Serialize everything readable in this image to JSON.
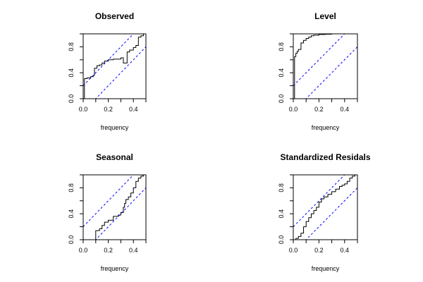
{
  "chart_data": [
    {
      "type": "line",
      "title": "Observed",
      "xlabel": "frequency",
      "ylabel": "",
      "xlim": [
        0,
        0.5
      ],
      "ylim": [
        0,
        1
      ],
      "xticks": [
        "0.0",
        "0.2",
        "0.4"
      ],
      "yticks": [
        "0.0",
        "0.4",
        "0.8"
      ],
      "grid": false,
      "series": [
        {
          "style": "step",
          "color": "#000000",
          "x": [
            0.0,
            0.01,
            0.03,
            0.06,
            0.08,
            0.09,
            0.11,
            0.13,
            0.15,
            0.17,
            0.2,
            0.24,
            0.3,
            0.32,
            0.35,
            0.37,
            0.4,
            0.42,
            0.44,
            0.46,
            0.48,
            0.5
          ],
          "y": [
            0.0,
            0.31,
            0.32,
            0.34,
            0.36,
            0.47,
            0.51,
            0.52,
            0.55,
            0.58,
            0.6,
            0.61,
            0.63,
            0.55,
            0.72,
            0.75,
            0.79,
            0.82,
            0.95,
            0.97,
            1.0,
            1.0
          ]
        },
        {
          "style": "dashed",
          "color": "#0000ff",
          "x": [
            0.0,
            0.5
          ],
          "y": [
            0.2,
            1.2
          ]
        },
        {
          "style": "dashed",
          "color": "#0000ff",
          "x": [
            0.0,
            0.5
          ],
          "y": [
            -0.2,
            0.8
          ]
        }
      ]
    },
    {
      "type": "line",
      "title": "Level",
      "xlabel": "frequency",
      "ylabel": "",
      "xlim": [
        0,
        0.5
      ],
      "ylim": [
        0,
        1
      ],
      "xticks": [
        "0.0",
        "0.2",
        "0.4"
      ],
      "yticks": [
        "0.0",
        "0.4",
        "0.8"
      ],
      "grid": false,
      "series": [
        {
          "style": "step",
          "color": "#000000",
          "x": [
            0.0,
            0.01,
            0.02,
            0.03,
            0.04,
            0.06,
            0.08,
            0.1,
            0.12,
            0.14,
            0.16,
            0.2,
            0.25,
            0.3,
            0.35,
            0.4,
            0.5
          ],
          "y": [
            0.0,
            0.65,
            0.7,
            0.73,
            0.76,
            0.86,
            0.9,
            0.93,
            0.95,
            0.97,
            0.98,
            0.99,
            0.995,
            1.0,
            1.0,
            1.0,
            1.0
          ]
        },
        {
          "style": "dashed",
          "color": "#0000ff",
          "x": [
            0.0,
            0.5
          ],
          "y": [
            0.2,
            1.2
          ]
        },
        {
          "style": "dashed",
          "color": "#0000ff",
          "x": [
            0.0,
            0.5
          ],
          "y": [
            -0.2,
            0.8
          ]
        }
      ]
    },
    {
      "type": "line",
      "title": "Seasonal",
      "xlabel": "frequency",
      "ylabel": "",
      "xlim": [
        0,
        0.5
      ],
      "ylim": [
        0,
        1
      ],
      "xticks": [
        "0.0",
        "0.2",
        "0.4"
      ],
      "yticks": [
        "0.0",
        "0.4",
        "0.8"
      ],
      "grid": false,
      "series": [
        {
          "style": "step",
          "color": "#000000",
          "x": [
            0.08,
            0.1,
            0.13,
            0.15,
            0.17,
            0.2,
            0.24,
            0.28,
            0.3,
            0.32,
            0.33,
            0.34,
            0.36,
            0.38,
            0.4,
            0.42,
            0.44,
            0.46,
            0.48,
            0.5
          ],
          "y": [
            0.0,
            0.14,
            0.17,
            0.22,
            0.27,
            0.3,
            0.36,
            0.38,
            0.42,
            0.5,
            0.56,
            0.62,
            0.66,
            0.72,
            0.8,
            0.9,
            0.95,
            0.98,
            1.0,
            1.0
          ]
        },
        {
          "style": "dashed",
          "color": "#0000ff",
          "x": [
            0.0,
            0.5
          ],
          "y": [
            0.2,
            1.2
          ]
        },
        {
          "style": "dashed",
          "color": "#0000ff",
          "x": [
            0.0,
            0.5
          ],
          "y": [
            -0.2,
            0.8
          ]
        }
      ]
    },
    {
      "type": "line",
      "title": "Standardized Residals",
      "xlabel": "frequency",
      "ylabel": "",
      "xlim": [
        0,
        0.5
      ],
      "ylim": [
        0,
        1
      ],
      "xticks": [
        "0.0",
        "0.2",
        "0.4"
      ],
      "yticks": [
        "0.0",
        "0.4",
        "0.8"
      ],
      "grid": false,
      "series": [
        {
          "style": "step",
          "color": "#000000",
          "x": [
            0.0,
            0.02,
            0.04,
            0.06,
            0.08,
            0.1,
            0.12,
            0.14,
            0.16,
            0.18,
            0.2,
            0.22,
            0.24,
            0.27,
            0.3,
            0.33,
            0.36,
            0.38,
            0.4,
            0.42,
            0.44,
            0.46,
            0.48,
            0.5
          ],
          "y": [
            0.0,
            0.02,
            0.05,
            0.1,
            0.2,
            0.28,
            0.34,
            0.4,
            0.45,
            0.5,
            0.58,
            0.63,
            0.66,
            0.7,
            0.74,
            0.78,
            0.82,
            0.84,
            0.86,
            0.9,
            0.95,
            0.98,
            1.0,
            1.0
          ]
        },
        {
          "style": "dashed",
          "color": "#0000ff",
          "x": [
            0.0,
            0.5
          ],
          "y": [
            0.2,
            1.2
          ]
        },
        {
          "style": "dashed",
          "color": "#0000ff",
          "x": [
            0.0,
            0.5
          ],
          "y": [
            -0.2,
            0.8
          ]
        }
      ]
    }
  ]
}
